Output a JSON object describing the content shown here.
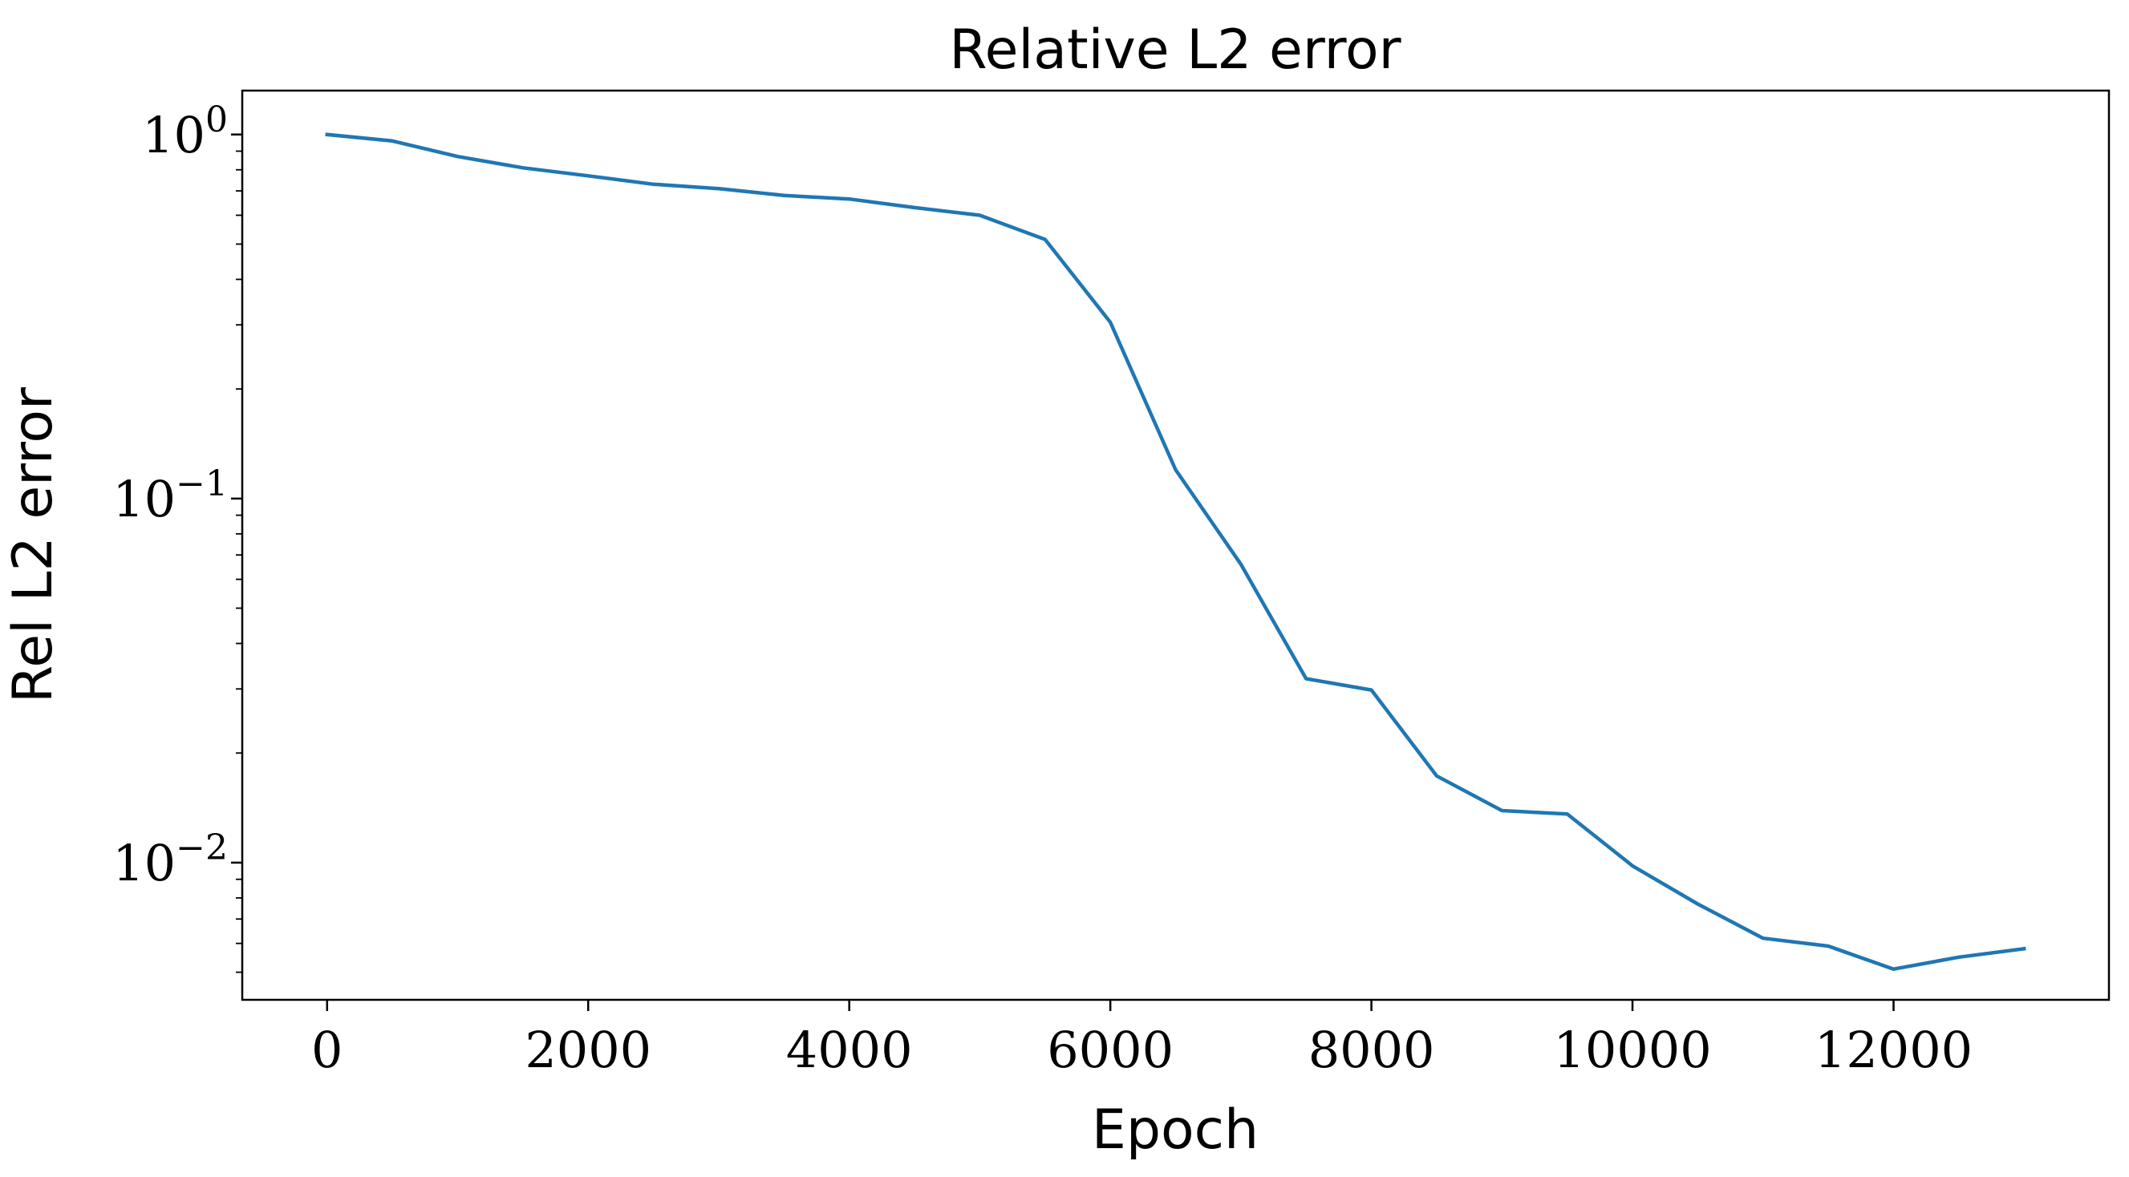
{
  "chart_data": {
    "type": "line",
    "title": "Relative L2 error",
    "xlabel": "Epoch",
    "ylabel": "Rel L2 error",
    "yscale": "log",
    "grid": false,
    "legend": "none",
    "xlim": [
      -650,
      13650
    ],
    "ylim": [
      0.0042,
      1.32
    ],
    "x_ticks": [
      0,
      2000,
      4000,
      6000,
      8000,
      10000,
      12000
    ],
    "x_tick_labels": [
      "0",
      "2000",
      "4000",
      "6000",
      "8000",
      "10000",
      "12000"
    ],
    "y_ticks": [
      1,
      0.1,
      0.01
    ],
    "y_tick_labels": [
      {
        "base": "10",
        "exp": "0"
      },
      {
        "base": "10",
        "exp": "−1"
      },
      {
        "base": "10",
        "exp": "−2"
      }
    ],
    "series": [
      {
        "color": "#1f77b4",
        "x": [
          0,
          500,
          1000,
          1500,
          2000,
          2500,
          3000,
          3500,
          4000,
          4500,
          5000,
          5500,
          6000,
          6500,
          7000,
          7500,
          8000,
          8500,
          9000,
          9500,
          10000,
          10500,
          11000,
          11500,
          12000,
          12500,
          13000
        ],
        "y": [
          1.0,
          0.96,
          0.87,
          0.81,
          0.77,
          0.73,
          0.71,
          0.68,
          0.665,
          0.63,
          0.6,
          0.515,
          0.305,
          0.12,
          0.066,
          0.032,
          0.0298,
          0.0173,
          0.0139,
          0.0136,
          0.0098,
          0.0077,
          0.0062,
          0.0059,
          0.0051,
          0.0055,
          0.0058
        ]
      }
    ]
  }
}
